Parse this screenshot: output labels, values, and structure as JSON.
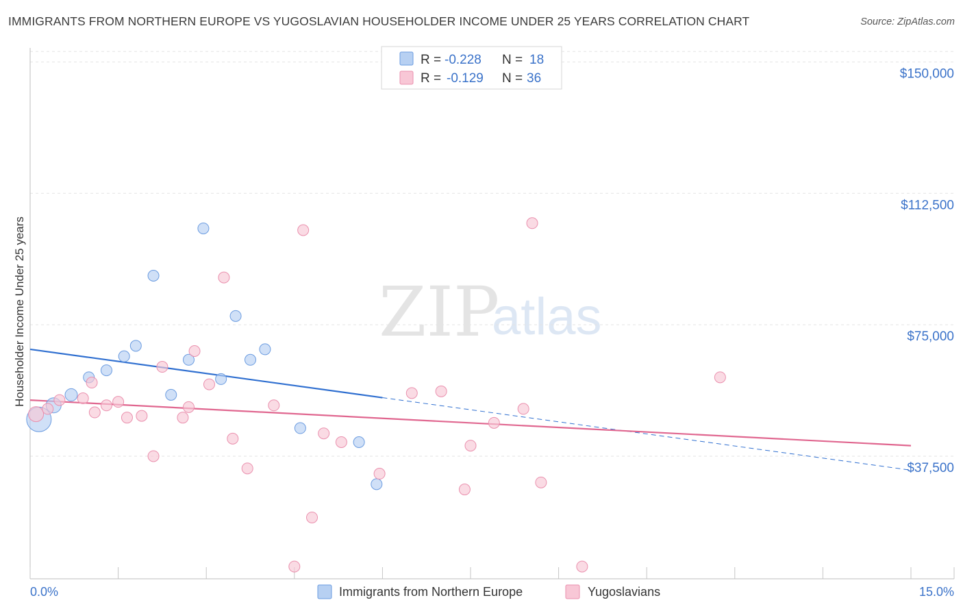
{
  "header": {
    "title": "IMMIGRANTS FROM NORTHERN EUROPE VS YUGOSLAVIAN HOUSEHOLDER INCOME UNDER 25 YEARS CORRELATION CHART",
    "source": "Source: ZipAtlas.com"
  },
  "watermark": {
    "zip": "ZIP",
    "atlas": "atlas"
  },
  "colors": {
    "blue_fill": "#b7d0f2",
    "blue_stroke": "#6a9be0",
    "blue_line": "#2f6fd0",
    "pink_fill": "#f8c7d6",
    "pink_stroke": "#ea8fad",
    "pink_line": "#e0668f",
    "axis_label": "#3a72c9"
  },
  "legend": {
    "rows": [
      {
        "r_label": "R =",
        "r_value": "-0.228",
        "n_label": "N =",
        "n_value": "18"
      },
      {
        "r_label": "R =",
        "r_value": "-0.129",
        "n_label": "N =",
        "n_value": "36"
      }
    ]
  },
  "bottom_legend": {
    "items": [
      "Immigrants from Northern Europe",
      "Yugoslavians"
    ]
  },
  "chart_data": {
    "type": "scatter",
    "title": "IMMIGRANTS FROM NORTHERN EUROPE VS YUGOSLAVIAN HOUSEHOLDER INCOME UNDER 25 YEARS CORRELATION CHART",
    "xlabel": "",
    "ylabel": "Householder Income Under 25 years",
    "xlim": [
      0,
      15
    ],
    "ylim": [
      2500,
      154000
    ],
    "x_tick_labels": [
      "0.0%",
      "15.0%"
    ],
    "y_ticks": [
      37500,
      75000,
      112500,
      150000
    ],
    "y_tick_labels": [
      "$37,500",
      "$75,000",
      "$112,500",
      "$150,000"
    ],
    "grid": true,
    "legend_position": "top-center",
    "series": [
      {
        "name": "Immigrants from Northern Europe",
        "color": "blue",
        "R": -0.228,
        "N": 18,
        "trend": {
          "x0": 0,
          "y0": 68000,
          "x1": 15,
          "y1": 33500,
          "solid_until": 6.0
        },
        "points": [
          {
            "x": 0.15,
            "y": 48000,
            "size": 18
          },
          {
            "x": 0.4,
            "y": 52000,
            "size": 11
          },
          {
            "x": 0.7,
            "y": 55000,
            "size": 9
          },
          {
            "x": 1.0,
            "y": 60000,
            "size": 8
          },
          {
            "x": 1.3,
            "y": 62000,
            "size": 8
          },
          {
            "x": 1.6,
            "y": 66000,
            "size": 8
          },
          {
            "x": 1.8,
            "y": 69000,
            "size": 8
          },
          {
            "x": 2.1,
            "y": 89000,
            "size": 8
          },
          {
            "x": 2.4,
            "y": 55000,
            "size": 8
          },
          {
            "x": 2.7,
            "y": 65000,
            "size": 8
          },
          {
            "x": 2.95,
            "y": 102500,
            "size": 8
          },
          {
            "x": 3.25,
            "y": 59500,
            "size": 8
          },
          {
            "x": 3.5,
            "y": 77500,
            "size": 8
          },
          {
            "x": 3.75,
            "y": 65000,
            "size": 8
          },
          {
            "x": 4.0,
            "y": 68000,
            "size": 8
          },
          {
            "x": 4.6,
            "y": 45500,
            "size": 8
          },
          {
            "x": 5.6,
            "y": 41500,
            "size": 8
          },
          {
            "x": 5.9,
            "y": 29500,
            "size": 8
          }
        ]
      },
      {
        "name": "Yugoslavians",
        "color": "pink",
        "R": -0.129,
        "N": 36,
        "trend": {
          "x0": 0,
          "y0": 53500,
          "x1": 15,
          "y1": 40500
        },
        "points": [
          {
            "x": 0.1,
            "y": 49500,
            "size": 11
          },
          {
            "x": 0.3,
            "y": 51000,
            "size": 8
          },
          {
            "x": 0.5,
            "y": 53500,
            "size": 8
          },
          {
            "x": 0.9,
            "y": 54000,
            "size": 8
          },
          {
            "x": 1.05,
            "y": 58500,
            "size": 8
          },
          {
            "x": 1.1,
            "y": 50000,
            "size": 8
          },
          {
            "x": 1.3,
            "y": 52000,
            "size": 8
          },
          {
            "x": 1.5,
            "y": 53000,
            "size": 8
          },
          {
            "x": 1.65,
            "y": 48500,
            "size": 8
          },
          {
            "x": 1.9,
            "y": 49000,
            "size": 8
          },
          {
            "x": 2.1,
            "y": 37500,
            "size": 8
          },
          {
            "x": 2.25,
            "y": 63000,
            "size": 8
          },
          {
            "x": 2.6,
            "y": 48500,
            "size": 8
          },
          {
            "x": 2.7,
            "y": 51500,
            "size": 8
          },
          {
            "x": 2.8,
            "y": 67500,
            "size": 8
          },
          {
            "x": 3.05,
            "y": 58000,
            "size": 8
          },
          {
            "x": 3.3,
            "y": 88500,
            "size": 8
          },
          {
            "x": 3.45,
            "y": 42500,
            "size": 8
          },
          {
            "x": 3.7,
            "y": 34000,
            "size": 8
          },
          {
            "x": 4.15,
            "y": 52000,
            "size": 8
          },
          {
            "x": 4.5,
            "y": 6000,
            "size": 8
          },
          {
            "x": 4.65,
            "y": 102000,
            "size": 8
          },
          {
            "x": 4.8,
            "y": 20000,
            "size": 8
          },
          {
            "x": 5.0,
            "y": 44000,
            "size": 8
          },
          {
            "x": 5.3,
            "y": 41500,
            "size": 8
          },
          {
            "x": 5.95,
            "y": 32500,
            "size": 8
          },
          {
            "x": 6.5,
            "y": 55500,
            "size": 8
          },
          {
            "x": 7.0,
            "y": 56000,
            "size": 8
          },
          {
            "x": 7.4,
            "y": 28000,
            "size": 8
          },
          {
            "x": 7.5,
            "y": 40500,
            "size": 8
          },
          {
            "x": 7.9,
            "y": 47000,
            "size": 8
          },
          {
            "x": 8.4,
            "y": 51000,
            "size": 8
          },
          {
            "x": 8.55,
            "y": 104000,
            "size": 8
          },
          {
            "x": 8.7,
            "y": 30000,
            "size": 8
          },
          {
            "x": 9.4,
            "y": 6000,
            "size": 8
          },
          {
            "x": 11.75,
            "y": 60000,
            "size": 8
          }
        ]
      }
    ]
  }
}
